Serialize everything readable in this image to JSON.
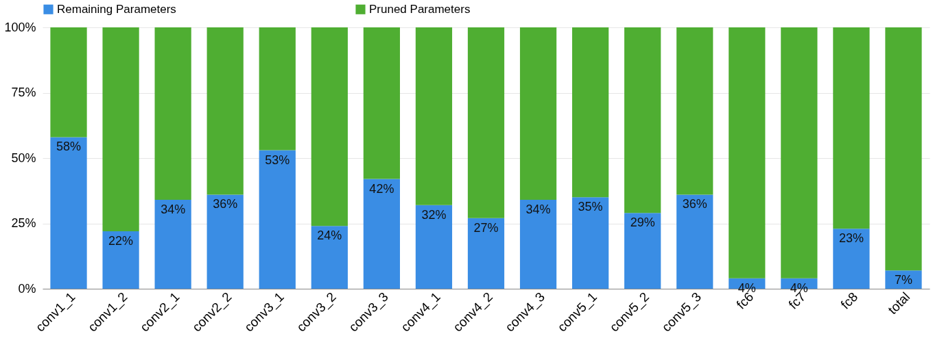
{
  "chart_data": {
    "type": "bar",
    "stacked": true,
    "categories": [
      "conv1_1",
      "conv1_2",
      "conv2_1",
      "conv2_2",
      "conv3_1",
      "conv3_2",
      "conv3_3",
      "conv4_1",
      "conv4_2",
      "conv4_3",
      "conv5_1",
      "conv5_2",
      "conv5_3",
      "fc6",
      "fc7",
      "fc8",
      "total"
    ],
    "series": [
      {
        "name": "Remaining Parameters",
        "color": "#3a8de4",
        "values": [
          58,
          22,
          34,
          36,
          53,
          24,
          42,
          32,
          27,
          34,
          35,
          29,
          36,
          4,
          4,
          23,
          7
        ],
        "value_labels": [
          "58%",
          "22%",
          "34%",
          "36%",
          "53%",
          "24%",
          "42%",
          "32%",
          "27%",
          "34%",
          "35%",
          "29%",
          "36%",
          "4%",
          "4%",
          "23%",
          "7%"
        ]
      },
      {
        "name": "Pruned Parameters",
        "color": "#4fae32",
        "values": [
          42,
          78,
          66,
          64,
          47,
          76,
          58,
          68,
          73,
          66,
          65,
          71,
          64,
          96,
          96,
          77,
          93
        ]
      }
    ],
    "ylim": [
      0,
      100
    ],
    "yticks": [
      {
        "value": 0,
        "label": "0%"
      },
      {
        "value": 25,
        "label": "25%"
      },
      {
        "value": 50,
        "label": "50%"
      },
      {
        "value": 75,
        "label": "75%"
      },
      {
        "value": 100,
        "label": "100%"
      }
    ],
    "grid": "y",
    "legend": "top"
  }
}
